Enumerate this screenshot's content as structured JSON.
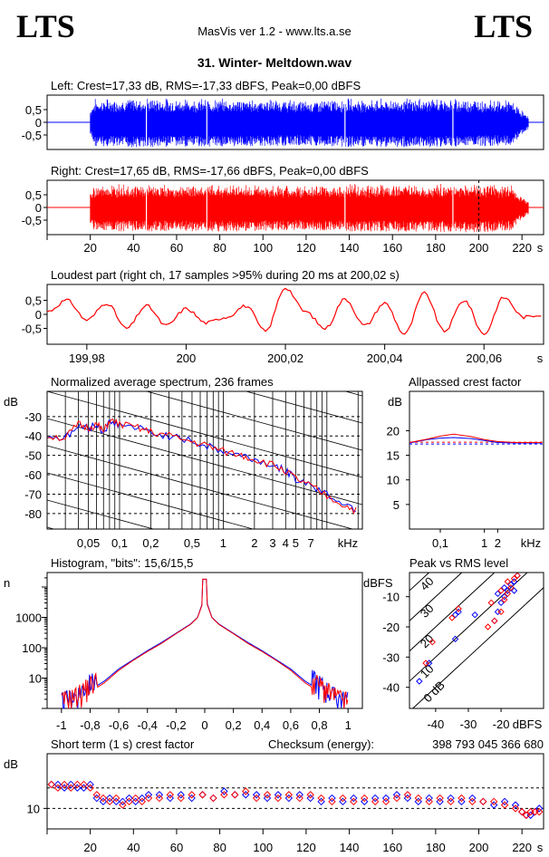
{
  "header": {
    "logo_left": "LTS",
    "logo_right": "LTS",
    "app_title": "MasVis ver 1.2 - www.lts.a.se",
    "file_title": "31. Winter- Meltdown.wav"
  },
  "colors": {
    "left": "#0000ff",
    "right": "#ff0000",
    "grid": "#000000"
  },
  "chart_data": [
    {
      "id": "left-waveform",
      "type": "area",
      "title": "Left: Crest=17,33 dB, RMS=-17,33 dBFS, Peak=0,00 dBFS",
      "yticks": [
        "0,5",
        "0",
        "-0,5"
      ],
      "ylim": [
        -1,
        1
      ],
      "xlim": [
        0,
        230
      ],
      "signal_start_s": 20,
      "signal_end_s": 223,
      "envelope": {
        "x": [
          20,
          22,
          40,
          60,
          80,
          100,
          120,
          140,
          150,
          160,
          180,
          200,
          215,
          222
        ],
        "amplitude": [
          0.55,
          0.95,
          1.0,
          0.97,
          0.95,
          0.95,
          0.9,
          0.98,
          0.95,
          0.97,
          0.98,
          0.95,
          0.9,
          0.3
        ]
      }
    },
    {
      "id": "right-waveform",
      "type": "area",
      "title": "Right: Crest=17,65 dB, RMS=-17,66 dBFS, Peak=0,00 dBFS",
      "yticks": [
        "0,5",
        "0",
        "-0,5"
      ],
      "ylim": [
        -1,
        1
      ],
      "xlim": [
        0,
        230
      ],
      "xticks": [
        "20",
        "40",
        "60",
        "80",
        "100",
        "120",
        "140",
        "160",
        "180",
        "200",
        "220"
      ],
      "xunit": "s",
      "signal_start_s": 20,
      "signal_end_s": 223,
      "peak_marker_s": 200,
      "envelope": {
        "x": [
          20,
          22,
          40,
          60,
          80,
          100,
          120,
          140,
          150,
          160,
          180,
          200,
          215,
          222
        ],
        "amplitude": [
          0.6,
          0.92,
          0.95,
          0.93,
          0.95,
          0.93,
          0.9,
          0.95,
          0.95,
          0.95,
          0.97,
          1.0,
          0.9,
          0.3
        ]
      }
    },
    {
      "id": "loudest-part",
      "type": "line",
      "title": "Loudest part (right ch, 17 samples >95% during 20 ms at 200,02 s)",
      "yticks": [
        "0,5",
        "0",
        "-0,5"
      ],
      "ylim": [
        -1,
        1
      ],
      "xlim": [
        199.972,
        200.072
      ],
      "xticks": [
        {
          "v": 199.98,
          "label": "199,98"
        },
        {
          "v": 200,
          "label": "200"
        },
        {
          "v": 200.02,
          "label": "200,02"
        },
        {
          "v": 200.04,
          "label": "200,04"
        },
        {
          "v": 200.06,
          "label": "200,06"
        }
      ],
      "xunit": "s",
      "x": [
        199.972,
        199.976,
        199.98,
        199.984,
        199.988,
        199.992,
        199.996,
        200.0,
        200.004,
        200.008,
        200.012,
        200.016,
        200.02,
        200.024,
        200.028,
        200.032,
        200.036,
        200.04,
        200.044,
        200.048,
        200.052,
        200.056,
        200.06,
        200.064,
        200.068,
        200.072
      ],
      "y": [
        0.1,
        0.5,
        -0.2,
        0.4,
        -0.5,
        0.3,
        -0.4,
        0.2,
        -0.3,
        -0.1,
        0.3,
        -0.6,
        0.95,
        0.1,
        -0.5,
        0.55,
        -0.4,
        0.4,
        -0.7,
        0.75,
        -0.6,
        0.5,
        -0.7,
        0.6,
        -0.1,
        0.0
      ]
    },
    {
      "id": "average-spectrum",
      "type": "line",
      "title": "Normalized average spectrum, 236 frames",
      "ylabel": "dB",
      "yticks": [
        "-30",
        "-40",
        "-50",
        "-60",
        "-70",
        "-80"
      ],
      "ylim": [
        -88,
        -17
      ],
      "xticks": [
        "0,05",
        "0,1",
        "0,2",
        "0,5",
        "1",
        "2",
        "3",
        "4",
        "5",
        "7"
      ],
      "xunit": "kHz",
      "xscale": "log",
      "x": [
        0.02,
        0.03,
        0.04,
        0.05,
        0.06,
        0.07,
        0.08,
        0.1,
        0.15,
        0.2,
        0.3,
        0.5,
        0.7,
        1,
        1.5,
        2,
        3,
        4,
        5,
        7,
        10,
        15,
        20
      ],
      "series": [
        {
          "name": "Left",
          "y": [
            -40,
            -41,
            -35,
            -36,
            -34,
            -38,
            -33,
            -34,
            -36,
            -38,
            -40,
            -43,
            -45,
            -48,
            -50,
            -52,
            -55,
            -58,
            -62,
            -65,
            -70,
            -75,
            -78
          ]
        },
        {
          "name": "Right",
          "y": [
            -40,
            -41,
            -34,
            -36,
            -34,
            -38,
            -32,
            -34,
            -36,
            -38,
            -40,
            -43,
            -45,
            -48,
            -50,
            -52,
            -55,
            -58,
            -62,
            -66,
            -71,
            -76,
            -79
          ]
        }
      ]
    },
    {
      "id": "allpassed-crest",
      "type": "line",
      "title": "Allpassed crest factor",
      "ylabel": "dB",
      "yticks": [
        "20",
        "15",
        "10",
        "5"
      ],
      "ylim": [
        0,
        28
      ],
      "xticks": [
        "0,1",
        "1",
        "2"
      ],
      "xunit": "kHz",
      "xscale": "log",
      "x": [
        0.02,
        0.05,
        0.1,
        0.2,
        0.5,
        1,
        2,
        5,
        20
      ],
      "series": [
        {
          "name": "Left",
          "y": [
            17.5,
            18.2,
            18.5,
            18.6,
            18.4,
            18.0,
            17.6,
            17.5,
            17.5
          ]
        },
        {
          "name": "Right",
          "y": [
            17.6,
            18.3,
            18.9,
            19.3,
            18.8,
            18.2,
            17.8,
            17.6,
            17.6
          ]
        }
      ],
      "reference_lines": [
        17.3,
        17.65
      ]
    },
    {
      "id": "histogram",
      "type": "line",
      "title": "Histogram, \"bits\": 15,6/15,5",
      "ylabel": "n",
      "yticks": [
        "1000",
        "100",
        "10"
      ],
      "yscale": "log",
      "ylim": [
        1,
        30000
      ],
      "xticks": [
        "-1",
        "-0,8",
        "-0,6",
        "-0,4",
        "-0,2",
        "0",
        "0,2",
        "0,4",
        "0,6",
        "0,8",
        "1"
      ],
      "xlim": [
        -1.1,
        1.1
      ],
      "x": [
        -1,
        -0.9,
        -0.8,
        -0.7,
        -0.6,
        -0.5,
        -0.4,
        -0.3,
        -0.2,
        -0.1,
        -0.05,
        0,
        0.05,
        0.1,
        0.2,
        0.3,
        0.4,
        0.5,
        0.6,
        0.7,
        0.8,
        0.9,
        1
      ],
      "series": [
        {
          "name": "Left",
          "y": [
            1,
            1.5,
            4,
            8,
            20,
            40,
            80,
            150,
            300,
            600,
            1000,
            5000,
            1000,
            600,
            300,
            150,
            80,
            40,
            20,
            8,
            4,
            1.5,
            1
          ]
        },
        {
          "name": "Right",
          "y": [
            1,
            1.5,
            3.5,
            7,
            18,
            38,
            75,
            140,
            290,
            580,
            980,
            4500,
            980,
            580,
            290,
            140,
            75,
            38,
            18,
            7,
            3.5,
            1.5,
            1
          ]
        }
      ]
    },
    {
      "id": "peak-vs-rms",
      "type": "scatter",
      "title": "Peak vs RMS level",
      "ylabel": "dBFS",
      "yticks": [
        "-10",
        "-20",
        "-30",
        "-40"
      ],
      "ylim": [
        -47,
        -2
      ],
      "xticks": [
        "-40",
        "-30",
        "-20"
      ],
      "xunit": "dBFS",
      "xlim": [
        -48,
        -7
      ],
      "diagonal_labels": [
        "40",
        "30",
        "20",
        "10",
        "0 dB"
      ],
      "series": [
        {
          "name": "Left",
          "points": [
            [
              -34,
              -24
            ],
            [
              -42,
              -32
            ],
            [
              -45,
              -38
            ],
            [
              -34,
              -16
            ],
            [
              -33,
              -15
            ],
            [
              -28,
              -16
            ],
            [
              -22,
              -18
            ],
            [
              -21,
              -15
            ],
            [
              -20,
              -12
            ],
            [
              -19,
              -10
            ],
            [
              -18,
              -8
            ],
            [
              -17,
              -6
            ],
            [
              -16,
              -5
            ],
            [
              -15,
              -3
            ],
            [
              -19,
              -7
            ],
            [
              -16,
              -8
            ],
            [
              -21,
              -9
            ]
          ]
        },
        {
          "name": "Right",
          "points": [
            [
              -41,
              -25
            ],
            [
              -43,
              -32
            ],
            [
              -35,
              -17
            ],
            [
              -33,
              -14
            ],
            [
              -24,
              -20
            ],
            [
              -22,
              -18
            ],
            [
              -20,
              -15
            ],
            [
              -19,
              -11
            ],
            [
              -18,
              -9
            ],
            [
              -17,
              -7
            ],
            [
              -16,
              -4
            ],
            [
              -15,
              -3
            ],
            [
              -20,
              -8
            ],
            [
              -18,
              -5
            ],
            [
              -23,
              -12
            ]
          ]
        }
      ]
    },
    {
      "id": "short-term-crest",
      "type": "scatter",
      "title": "Short term (1 s) crest factor",
      "checksum_label": "Checksum (energy):",
      "checksum_value": "398 793 045 366 680",
      "ylabel": "dB",
      "yticks": [
        "10"
      ],
      "ylim": [
        4,
        26
      ],
      "xlim": [
        0,
        230
      ],
      "xticks": [
        "20",
        "40",
        "60",
        "80",
        "100",
        "120",
        "140",
        "160",
        "180",
        "200",
        "220"
      ],
      "xunit": "s",
      "reference_lines": [
        10,
        16
      ],
      "x": [
        2,
        5,
        8,
        11,
        14,
        17,
        20,
        23,
        26,
        29,
        32,
        35,
        38,
        41,
        44,
        47,
        52,
        57,
        62,
        67,
        72,
        77,
        82,
        87,
        92,
        97,
        102,
        107,
        112,
        117,
        122,
        127,
        132,
        137,
        142,
        147,
        152,
        157,
        162,
        167,
        172,
        177,
        182,
        187,
        192,
        197,
        202,
        207,
        212,
        217,
        220,
        222,
        224,
        226,
        228
      ],
      "series": [
        {
          "name": "Left",
          "y": [
            17,
            17,
            16,
            17,
            16,
            16,
            17,
            13,
            12,
            13,
            12,
            12,
            13,
            12,
            13,
            14,
            14,
            13,
            14,
            13,
            14,
            13,
            15,
            14,
            14,
            14,
            13,
            14,
            13,
            14,
            13,
            12,
            13,
            12,
            13,
            12,
            13,
            13,
            14,
            13,
            12,
            13,
            12,
            13,
            12,
            13,
            12,
            11,
            12,
            11,
            9,
            8,
            8,
            9,
            10
          ]
        },
        {
          "name": "Right",
          "y": [
            17,
            16,
            17,
            16,
            17,
            17,
            16,
            14,
            13,
            12,
            13,
            11,
            12,
            13,
            12,
            13,
            13,
            14,
            13,
            14,
            14,
            13,
            14,
            14,
            15,
            13,
            14,
            13,
            14,
            13,
            14,
            13,
            12,
            13,
            12,
            13,
            12,
            12,
            13,
            14,
            13,
            12,
            13,
            12,
            13,
            12,
            12,
            12,
            11,
            10,
            9,
            8,
            9,
            9,
            9
          ]
        }
      ]
    }
  ]
}
